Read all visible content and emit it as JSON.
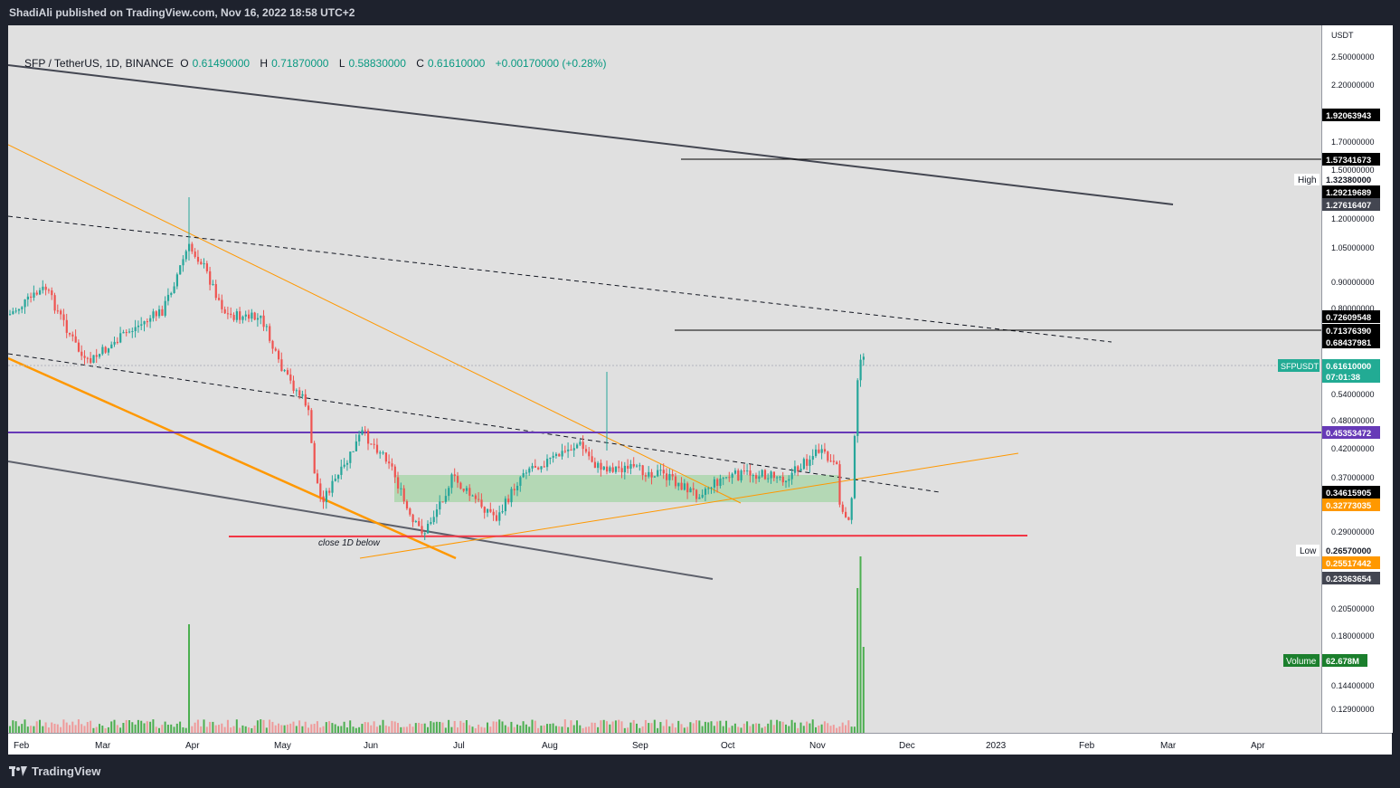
{
  "header": {
    "publisher": "ShadiAli published on TradingView.com, Nov 16, 2022 18:58 UTC+2"
  },
  "legend": {
    "symbol": "SFP / TetherUS, 1D, BINANCE",
    "open_label": "O",
    "open": "0.61490000",
    "high_label": "H",
    "high": "0.71870000",
    "low_label": "L",
    "low": "0.58830000",
    "close_label": "C",
    "close": "0.61610000",
    "change": "+0.00170000 (+0.28%)"
  },
  "price_axis": {
    "currency": "USDT",
    "ticks": [
      "2.50000000",
      "2.20000000",
      "1.70000000",
      "1.50000000",
      "1.20000000",
      "1.05000000",
      "0.90000000",
      "0.80000000",
      "0.54000000",
      "0.48000000",
      "0.42000000",
      "0.37000000",
      "0.29000000",
      "0.20500000",
      "0.18000000",
      "0.14400000",
      "0.12900000"
    ],
    "labels": [
      {
        "text": "1.92063943",
        "bg": "#000000",
        "fg": "#ffffff"
      },
      {
        "text": "1.57341673",
        "bg": "#000000",
        "fg": "#ffffff"
      },
      {
        "text": "1.32380000",
        "bg": "#ffffff",
        "fg": "#131722"
      },
      {
        "text": "1.29219689",
        "bg": "#000000",
        "fg": "#ffffff"
      },
      {
        "text": "1.27616407",
        "bg": "#434651",
        "fg": "#ffffff"
      },
      {
        "text": "0.72609548",
        "bg": "#000000",
        "fg": "#ffffff"
      },
      {
        "text": "0.71376390",
        "bg": "#000000",
        "fg": "#ffffff"
      },
      {
        "text": "0.68437981",
        "bg": "#000000",
        "fg": "#ffffff"
      },
      {
        "text": "0.61610000",
        "bg": "#22ab94",
        "fg": "#ffffff"
      },
      {
        "text": "07:01:38",
        "bg": "#22ab94",
        "fg": "#ffffff"
      },
      {
        "text": "0.45353472",
        "bg": "#673ab7",
        "fg": "#ffffff"
      },
      {
        "text": "0.34615905",
        "bg": "#000000",
        "fg": "#ffffff"
      },
      {
        "text": "0.32773035",
        "bg": "#ff9800",
        "fg": "#ffffff"
      },
      {
        "text": "0.26570000",
        "bg": "#ffffff",
        "fg": "#131722"
      },
      {
        "text": "0.25517442",
        "bg": "#ff9800",
        "fg": "#ffffff"
      },
      {
        "text": "0.23363654",
        "bg": "#434651",
        "fg": "#ffffff"
      },
      {
        "text": "62.678M",
        "bg": "#1b7f2d",
        "fg": "#ffffff"
      }
    ],
    "tags": {
      "high": "High",
      "low": "Low",
      "symbol": "SFPUSDT",
      "volume": "Volume"
    }
  },
  "time_axis": {
    "labels": [
      "Feb",
      "Mar",
      "Apr",
      "May",
      "Jun",
      "Jul",
      "Aug",
      "Sep",
      "Oct",
      "Nov",
      "Dec",
      "2023",
      "Feb",
      "Mar",
      "Apr"
    ]
  },
  "annotations": {
    "close_note": "close 1D below"
  },
  "colors": {
    "bull": "#26a69a",
    "bear": "#ef5350",
    "purple": "#673ab7",
    "orange": "#ff9800",
    "red": "#f23645",
    "zone": "#a5d6a7"
  },
  "footer": {
    "brand": "TradingView"
  }
}
